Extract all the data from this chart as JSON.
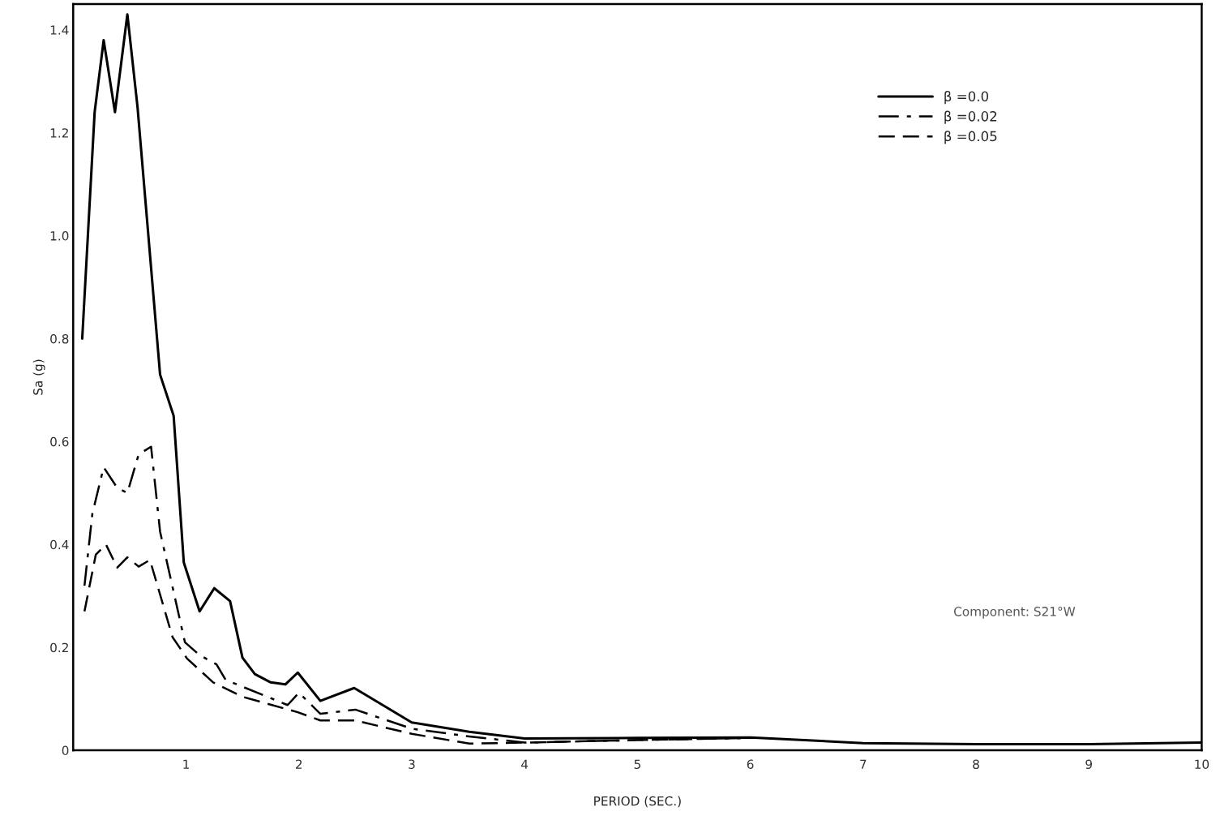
{
  "chart_data": {
    "type": "line",
    "xlabel": "PERIOD (SEC.)",
    "ylabel": "Sa (g)",
    "xlim": [
      0,
      10
    ],
    "ylim": [
      0,
      1.45
    ],
    "xticks": [
      1,
      2,
      3,
      4,
      5,
      6,
      7,
      8,
      9,
      10
    ],
    "yticks": [
      0,
      {
        "value": 0.2,
        "label": "0.2"
      },
      {
        "value": 0.4,
        "label": "0.4"
      },
      {
        "value": 0.6,
        "label": "0.6"
      },
      {
        "value": 0.8,
        "label": "0.8"
      },
      {
        "value": 1.0,
        "label": "1.0"
      },
      {
        "value": 1.2,
        "label": "1.2"
      },
      {
        "value": 1.4,
        "label": "1.4"
      }
    ],
    "grid": false,
    "legend": "top right",
    "marker": "none",
    "annotations": [
      {
        "text": "Component: S21°W"
      }
    ],
    "series": [
      {
        "name": "β =0.0",
        "color": "#000000",
        "line_style": "solid",
        "x": [
          0.08,
          0.19,
          0.27,
          0.37,
          0.48,
          0.57,
          0.77,
          0.89,
          0.98,
          1.12,
          1.25,
          1.39,
          1.5,
          1.61,
          1.75,
          1.88,
          1.99,
          2.19,
          2.49,
          3.0,
          3.51,
          4,
          5,
          6,
          7,
          8,
          9,
          10
        ],
        "values": [
          0.8,
          1.24,
          1.38,
          1.24,
          1.43,
          1.25,
          0.73,
          0.65,
          0.365,
          0.27,
          0.315,
          0.29,
          0.18,
          0.148,
          0.132,
          0.128,
          0.151,
          0.096,
          0.121,
          0.054,
          0.036,
          0.023,
          0.024,
          0.025,
          0.014,
          0.012,
          0.012,
          0.015
        ]
      },
      {
        "name": "β =0.02",
        "color": "#000000",
        "line_style": "dashdot",
        "x": [
          0.1,
          0.17,
          0.27,
          0.39,
          0.48,
          0.58,
          0.69,
          0.77,
          0.99,
          1.12,
          1.27,
          1.35,
          1.9,
          2.0,
          2.19,
          2.5,
          3.0,
          3.51,
          4,
          5,
          6
        ],
        "values": [
          0.32,
          0.46,
          0.55,
          0.51,
          0.5,
          0.575,
          0.59,
          0.425,
          0.21,
          0.185,
          0.167,
          0.137,
          0.088,
          0.112,
          0.071,
          0.079,
          0.042,
          0.027,
          0.015,
          0.02,
          0.024
        ]
      },
      {
        "name": "β =0.05",
        "color": "#000000",
        "line_style": "dashed",
        "x": [
          0.1,
          0.2,
          0.29,
          0.39,
          0.48,
          0.58,
          0.68,
          0.88,
          1.01,
          1.24,
          1.5,
          1.99,
          2.19,
          2.5,
          3.0,
          3.51,
          4,
          5,
          6
        ],
        "values": [
          0.27,
          0.38,
          0.4,
          0.355,
          0.375,
          0.357,
          0.37,
          0.22,
          0.178,
          0.132,
          0.104,
          0.074,
          0.058,
          0.058,
          0.032,
          0.013,
          0.015,
          0.02,
          0.024
        ]
      }
    ]
  }
}
